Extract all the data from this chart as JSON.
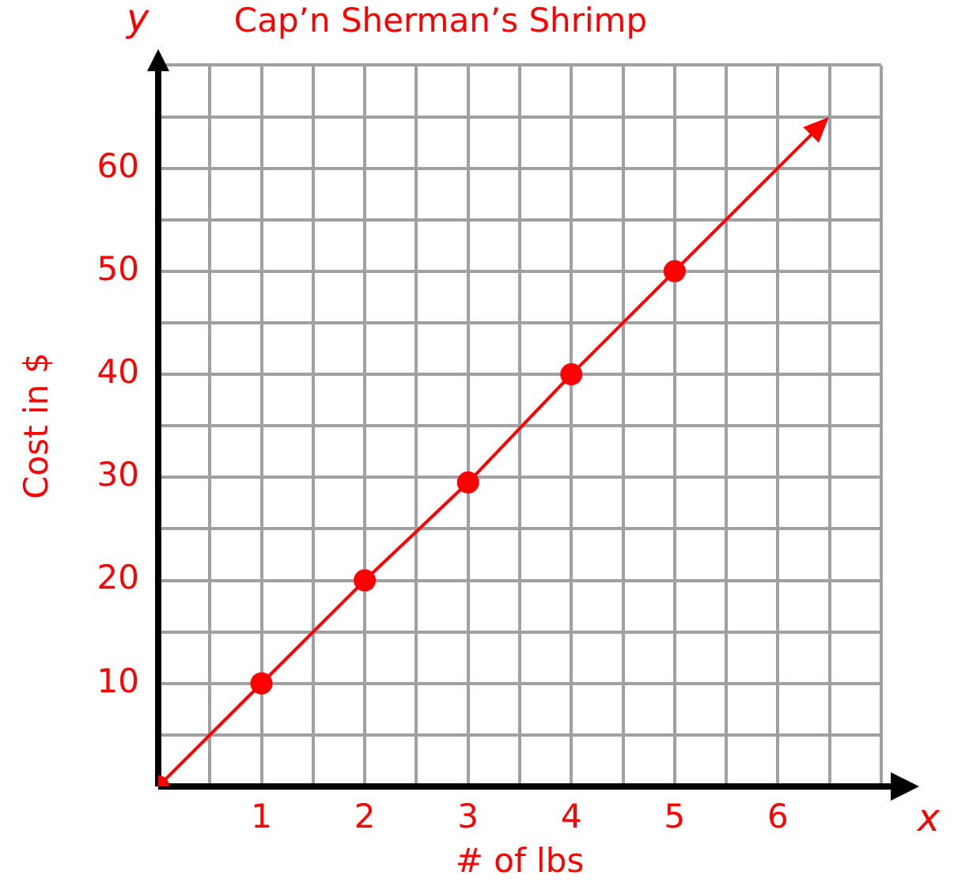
{
  "chart_data": {
    "type": "scatter",
    "title": "Cap’n Sherman’s Shrimp",
    "xlabel": "# of lbs",
    "ylabel": "Cost in $",
    "annotations": [
      "y",
      "x"
    ],
    "series": [
      {
        "type": "line",
        "color": "#ff0000",
        "x": [
          0,
          1,
          2,
          3,
          4,
          5
        ],
        "values": [
          0,
          10,
          20,
          29.5,
          40,
          50
        ],
        "marker": "circle"
      }
    ],
    "xlim": [
      0,
      7
    ],
    "ylim": [
      0,
      70
    ],
    "xticks": [
      {
        "value": 0,
        "label": null
      },
      {
        "value": 0.5,
        "label": null
      },
      1,
      {
        "value": 1.5,
        "label": null
      },
      2,
      {
        "value": 2.5,
        "label": null
      },
      3,
      {
        "value": 3.5,
        "label": null
      },
      4,
      {
        "value": 4.5,
        "label": null
      },
      5,
      {
        "value": 5.5,
        "label": null
      },
      6,
      {
        "value": 6.5,
        "label": null
      },
      {
        "value": 7,
        "label": null
      }
    ],
    "yticks": [
      {
        "value": 0,
        "label": null
      },
      {
        "value": 5,
        "label": null
      },
      10,
      {
        "value": 15,
        "label": null
      },
      20,
      {
        "value": 25,
        "label": null
      },
      30,
      {
        "value": 35,
        "label": null
      },
      40,
      {
        "value": 45,
        "label": null
      },
      50,
      {
        "value": 55,
        "label": null
      },
      60,
      {
        "value": 65,
        "label": null
      },
      {
        "value": 70,
        "label": null
      }
    ],
    "grid": true,
    "legend": false
  }
}
